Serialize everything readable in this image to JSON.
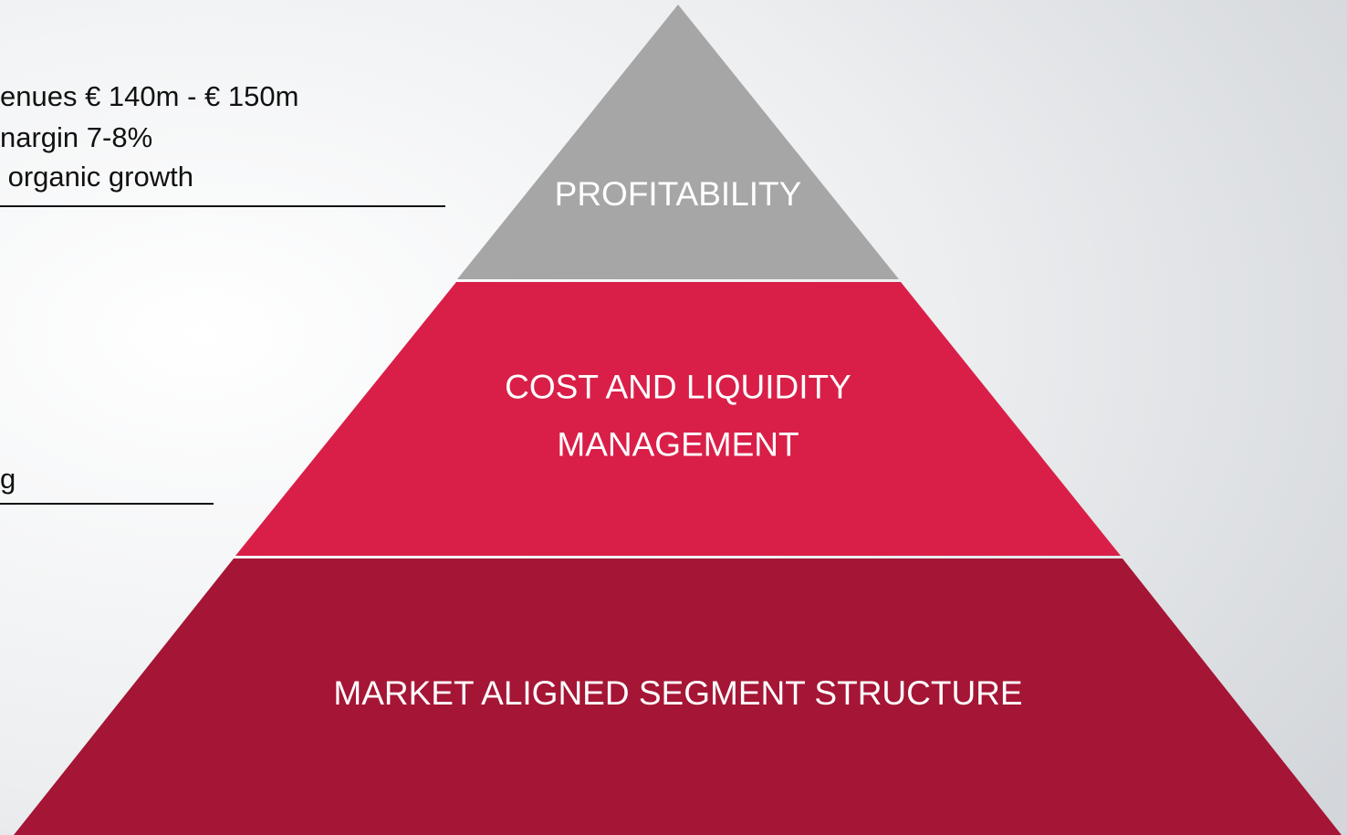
{
  "left_text": {
    "lines": [
      "enues € 140m - € 150m",
      "nargin 7-8%",
      " organic growth"
    ],
    "fragment": "g"
  },
  "pyramid": {
    "levels": [
      {
        "lines": [
          "PROFITABILITY"
        ]
      },
      {
        "lines": [
          "COST AND LIQUIDITY",
          "MANAGEMENT"
        ]
      },
      {
        "lines": [
          "MARKET ALIGNED SEGMENT STRUCTURE"
        ]
      }
    ]
  }
}
